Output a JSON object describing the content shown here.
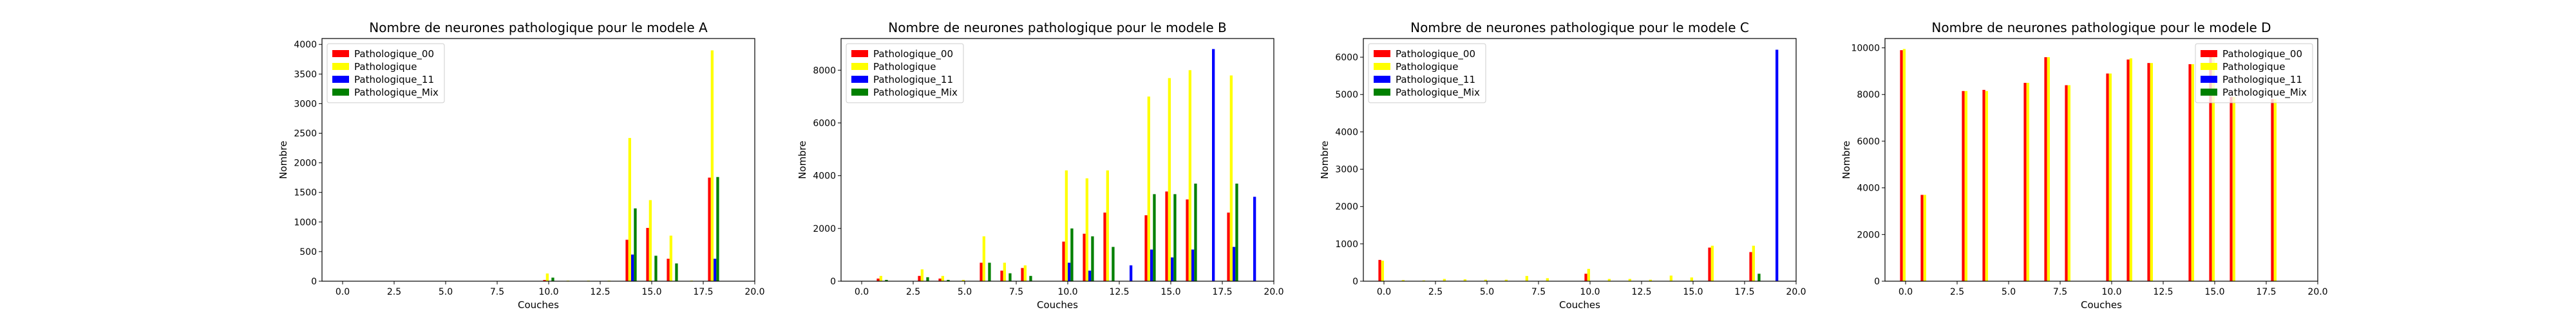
{
  "chart_data": [
    {
      "type": "bar",
      "title": "Nombre de neurones pathologique pour le modele A",
      "xlabel": "Couches",
      "ylabel": "Nombre",
      "xlim": [
        -1,
        20
      ],
      "ylim": [
        0,
        4100
      ],
      "xticks": [
        0,
        2.5,
        5,
        7.5,
        10,
        12.5,
        15,
        17.5,
        20
      ],
      "xtick_labels": [
        "0.0",
        "2.5",
        "5.0",
        "7.5",
        "10.0",
        "12.5",
        "15.0",
        "17.5",
        "20.0"
      ],
      "yticks": [
        0,
        500,
        1000,
        1500,
        2000,
        2500,
        3000,
        3500,
        4000
      ],
      "ytick_labels": [
        "0",
        "500",
        "1000",
        "1500",
        "2000",
        "2500",
        "3000",
        "3500",
        "4000"
      ],
      "legend_position": "top-left",
      "x": [
        0,
        1,
        2,
        3,
        4,
        5,
        6,
        7,
        8,
        9,
        10,
        11,
        12,
        13,
        14,
        15,
        16,
        17,
        18
      ],
      "series": [
        {
          "name": "Pathologique_00",
          "color": "#ff0000",
          "values": [
            0,
            0,
            0,
            0,
            0,
            0,
            0,
            0,
            0,
            0,
            20,
            0,
            0,
            0,
            700,
            900,
            380,
            0,
            1750
          ]
        },
        {
          "name": "Pathologique",
          "color": "#ffff00",
          "values": [
            5,
            5,
            5,
            5,
            5,
            5,
            5,
            5,
            5,
            5,
            130,
            10,
            10,
            10,
            2420,
            1370,
            770,
            10,
            3900
          ]
        },
        {
          "name": "Pathologique_11",
          "color": "#0000ff",
          "values": [
            0,
            0,
            0,
            0,
            0,
            0,
            0,
            0,
            0,
            0,
            0,
            0,
            0,
            0,
            450,
            0,
            0,
            0,
            380
          ]
        },
        {
          "name": "Pathologique_Mix",
          "color": "#008000",
          "values": [
            0,
            0,
            0,
            0,
            0,
            0,
            0,
            0,
            0,
            0,
            60,
            0,
            0,
            0,
            1230,
            430,
            300,
            0,
            1760
          ]
        }
      ]
    },
    {
      "type": "bar",
      "title": "Nombre de neurones pathologique pour le modele B",
      "xlabel": "Couches",
      "ylabel": "Nombre",
      "xlim": [
        -1,
        20
      ],
      "ylim": [
        0,
        9200
      ],
      "xticks": [
        0,
        2.5,
        5,
        7.5,
        10,
        12.5,
        15,
        17.5,
        20
      ],
      "xtick_labels": [
        "0.0",
        "2.5",
        "5.0",
        "7.5",
        "10.0",
        "12.5",
        "15.0",
        "17.5",
        "20.0"
      ],
      "yticks": [
        0,
        2000,
        4000,
        6000,
        8000
      ],
      "ytick_labels": [
        "0",
        "2000",
        "4000",
        "6000",
        "8000"
      ],
      "legend_position": "top-left",
      "x": [
        0,
        1,
        2,
        3,
        4,
        5,
        6,
        7,
        8,
        9,
        10,
        11,
        12,
        13,
        14,
        15,
        16,
        17,
        18,
        19
      ],
      "series": [
        {
          "name": "Pathologique_00",
          "color": "#ff0000",
          "values": [
            0,
            100,
            0,
            200,
            100,
            0,
            700,
            400,
            500,
            0,
            1500,
            1800,
            2600,
            0,
            2500,
            3400,
            3100,
            0,
            2600,
            0
          ]
        },
        {
          "name": "Pathologique",
          "color": "#ffff00",
          "values": [
            0,
            200,
            0,
            450,
            200,
            50,
            1700,
            700,
            600,
            0,
            4200,
            3900,
            4200,
            0,
            7000,
            7700,
            8000,
            0,
            7800,
            0
          ]
        },
        {
          "name": "Pathologique_11",
          "color": "#0000ff",
          "values": [
            0,
            0,
            0,
            0,
            0,
            0,
            0,
            0,
            0,
            0,
            700,
            400,
            0,
            600,
            1200,
            900,
            1200,
            8800,
            1300,
            3200
          ]
        },
        {
          "name": "Pathologique_Mix",
          "color": "#008000",
          "values": [
            0,
            50,
            0,
            150,
            50,
            0,
            700,
            300,
            200,
            0,
            2000,
            1700,
            1300,
            0,
            3300,
            3300,
            3700,
            0,
            3700,
            0
          ]
        }
      ]
    },
    {
      "type": "bar",
      "title": "Nombre de neurones pathologique pour le modele C",
      "xlabel": "Couches",
      "ylabel": "Nombre",
      "xlim": [
        -1,
        20
      ],
      "ylim": [
        0,
        6500
      ],
      "xticks": [
        0,
        2.5,
        5,
        7.5,
        10,
        12.5,
        15,
        17.5,
        20
      ],
      "xtick_labels": [
        "0.0",
        "2.5",
        "5.0",
        "7.5",
        "10.0",
        "12.5",
        "15.0",
        "17.5",
        "20.0"
      ],
      "yticks": [
        0,
        1000,
        2000,
        3000,
        4000,
        5000,
        6000
      ],
      "ytick_labels": [
        "0",
        "1000",
        "2000",
        "3000",
        "4000",
        "5000",
        "6000"
      ],
      "legend_position": "top-left",
      "x": [
        0,
        1,
        2,
        3,
        4,
        5,
        6,
        7,
        8,
        9,
        10,
        11,
        12,
        13,
        14,
        15,
        16,
        17,
        18,
        19
      ],
      "series": [
        {
          "name": "Pathologique_00",
          "color": "#ff0000",
          "values": [
            570,
            0,
            0,
            0,
            0,
            0,
            0,
            0,
            0,
            0,
            200,
            0,
            0,
            0,
            0,
            0,
            900,
            0,
            780,
            0
          ]
        },
        {
          "name": "Pathologique",
          "color": "#ffff00",
          "values": [
            550,
            30,
            20,
            60,
            50,
            40,
            40,
            140,
            80,
            0,
            330,
            60,
            60,
            40,
            150,
            100,
            950,
            0,
            950,
            0
          ]
        },
        {
          "name": "Pathologique_11",
          "color": "#0000ff",
          "values": [
            0,
            0,
            0,
            0,
            0,
            0,
            0,
            0,
            0,
            0,
            0,
            0,
            0,
            0,
            0,
            0,
            0,
            0,
            0,
            6200
          ]
        },
        {
          "name": "Pathologique_Mix",
          "color": "#008000",
          "values": [
            0,
            0,
            0,
            0,
            0,
            0,
            0,
            0,
            0,
            0,
            0,
            0,
            0,
            0,
            0,
            0,
            0,
            0,
            200,
            0
          ]
        }
      ]
    },
    {
      "type": "bar",
      "title": "Nombre de neurones pathologique pour le modele D",
      "xlabel": "Couches",
      "ylabel": "Nombre",
      "xlim": [
        -1,
        20
      ],
      "ylim": [
        0,
        10400
      ],
      "xticks": [
        0,
        2.5,
        5,
        7.5,
        10,
        12.5,
        15,
        17.5,
        20
      ],
      "xtick_labels": [
        "0.0",
        "2.5",
        "5.0",
        "7.5",
        "10.0",
        "12.5",
        "15.0",
        "17.5",
        "20.0"
      ],
      "yticks": [
        0,
        2000,
        4000,
        6000,
        8000,
        10000
      ],
      "ytick_labels": [
        "0",
        "2000",
        "4000",
        "6000",
        "8000",
        "10000"
      ],
      "legend_position": "top-right",
      "x": [
        0,
        1,
        2,
        3,
        4,
        5,
        6,
        7,
        8,
        9,
        10,
        11,
        12,
        13,
        14,
        15,
        16,
        17,
        18
      ],
      "series": [
        {
          "name": "Pathologique_00",
          "color": "#ff0000",
          "values": [
            9900,
            3700,
            0,
            8150,
            8200,
            0,
            8500,
            9600,
            8400,
            0,
            8900,
            9500,
            9350,
            0,
            9300,
            9800,
            7900,
            0,
            7800
          ]
        },
        {
          "name": "Pathologique",
          "color": "#ffff00",
          "values": [
            9950,
            3700,
            0,
            8150,
            8150,
            0,
            8500,
            9600,
            8400,
            0,
            8900,
            9550,
            9350,
            0,
            9300,
            9800,
            7900,
            0,
            7800
          ]
        },
        {
          "name": "Pathologique_11",
          "color": "#0000ff",
          "values": [
            0,
            0,
            0,
            0,
            0,
            0,
            0,
            0,
            0,
            0,
            0,
            0,
            0,
            0,
            0,
            0,
            0,
            0,
            0
          ]
        },
        {
          "name": "Pathologique_Mix",
          "color": "#008000",
          "values": [
            0,
            0,
            0,
            0,
            0,
            0,
            0,
            0,
            0,
            0,
            0,
            0,
            0,
            0,
            0,
            0,
            0,
            0,
            0
          ]
        }
      ]
    }
  ]
}
